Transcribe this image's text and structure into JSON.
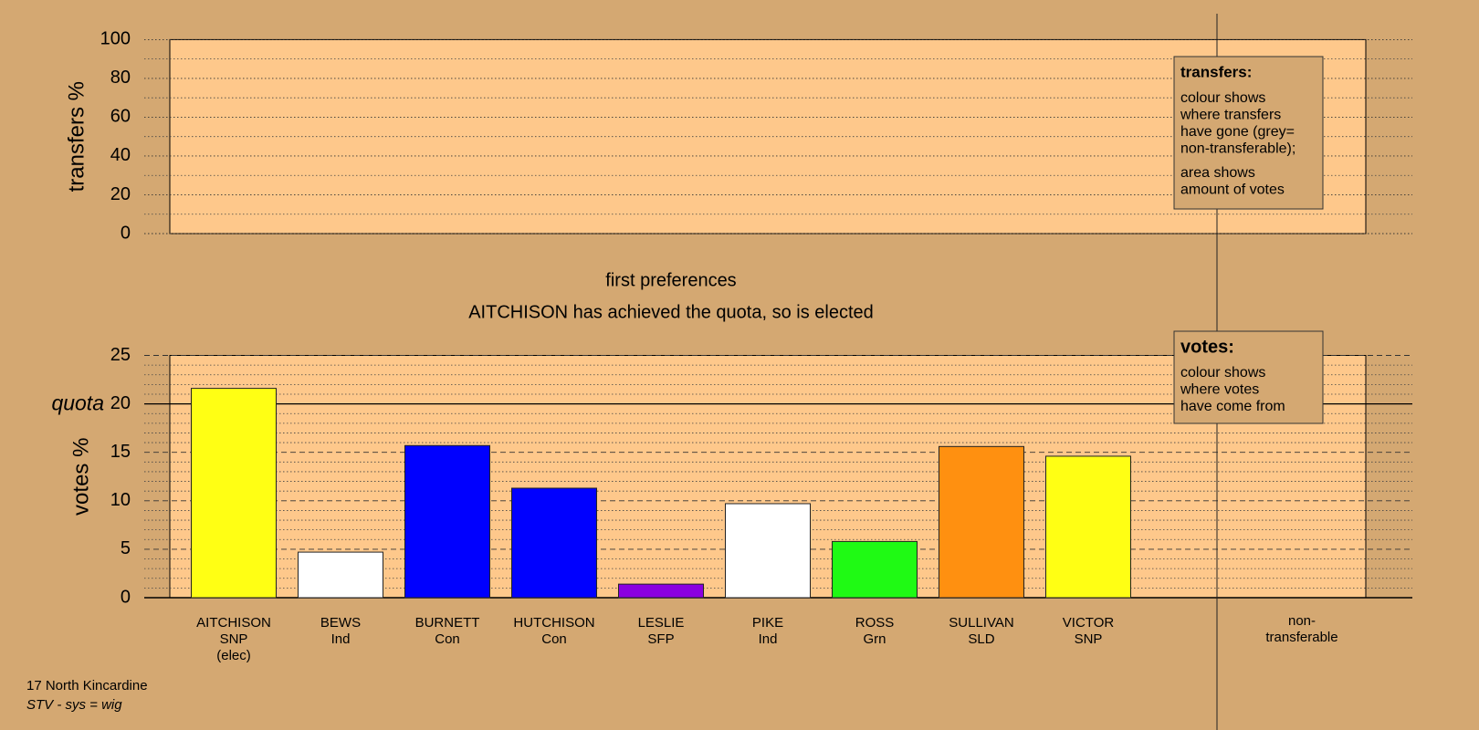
{
  "chart_data": [
    {
      "type": "bar",
      "y_label": "transfers %",
      "ylim": [
        0,
        100
      ],
      "yticks": [
        0,
        20,
        40,
        60,
        80,
        100
      ],
      "minor_yticks": [
        10,
        30,
        50,
        70,
        90
      ],
      "grid": true,
      "legend_box": {
        "title": "transfers:",
        "paragraphs": [
          [
            "colour shows",
            "where transfers",
            "have gone (grey=",
            "non-transferable);"
          ],
          [
            "area shows",
            "amount of votes"
          ]
        ]
      }
    },
    {
      "type": "bar",
      "title": "first preferences",
      "subtitle": "AITCHISON has achieved the quota, so is elected",
      "y_label": "votes %",
      "ylim": [
        0,
        25
      ],
      "yticks": [
        0,
        5,
        10,
        15,
        20,
        25
      ],
      "minor_yticks": [
        1,
        2,
        3,
        4,
        6,
        7,
        8,
        9,
        11,
        12,
        13,
        14,
        16,
        17,
        18,
        19,
        21,
        22,
        23,
        24
      ],
      "grid": true,
      "quota": {
        "value": 20,
        "label": "quota"
      },
      "categories": [
        [
          "AITCHISON",
          "SNP",
          "(elec)"
        ],
        [
          "BEWS",
          "Ind"
        ],
        [
          "BURNETT",
          "Con"
        ],
        [
          "HUTCHISON",
          "Con"
        ],
        [
          "LESLIE",
          "SFP"
        ],
        [
          "PIKE",
          "Ind"
        ],
        [
          "ROSS",
          "Grn"
        ],
        [
          "SULLIVAN",
          "SLD"
        ],
        [
          "VICTOR",
          "SNP"
        ],
        [
          "non-",
          "transferable"
        ]
      ],
      "values": [
        21.6,
        4.7,
        15.7,
        11.3,
        1.4,
        9.7,
        5.8,
        15.6,
        14.6,
        null
      ],
      "colors": [
        "#ffff14",
        "#ffffff",
        "#0000ff",
        "#0000ff",
        "#8b00e0",
        "#ffffff",
        "#1ffa14",
        "#ff9010",
        "#ffff14",
        null
      ],
      "legend_box": {
        "title": "votes:",
        "paragraphs": [
          [
            "colour shows",
            "where votes",
            "have come from"
          ]
        ]
      }
    }
  ],
  "footer": {
    "place": "17 North Kincardine",
    "system": "STV - sys = wig"
  }
}
